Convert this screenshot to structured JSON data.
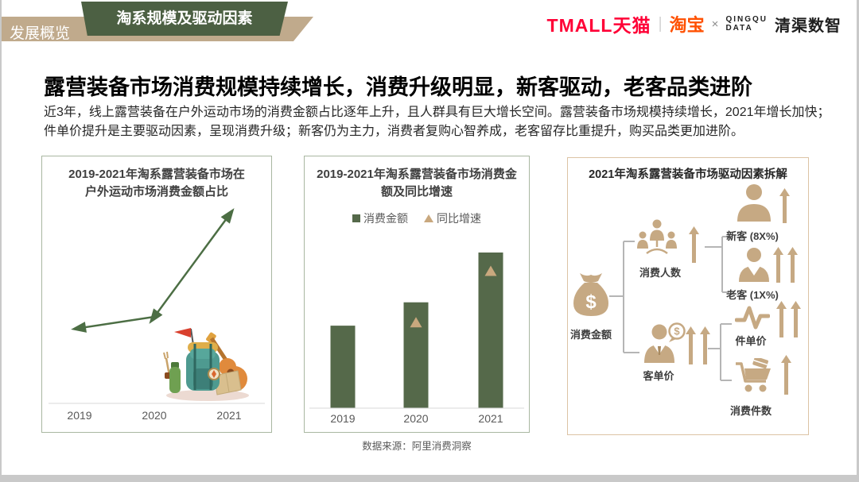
{
  "header": {
    "section_label": "发展概览",
    "page_tab": "淘系规模及驱动因素",
    "logos": {
      "tmall": "TMALL天猫",
      "separator": "|",
      "taobao": "淘宝",
      "cross": "×",
      "qingqu_en_line1": "QINGQU",
      "qingqu_en_line2": "DATA",
      "qingqu_cn": "清渠数智"
    }
  },
  "headline": "露营装备市场消费规模持续增长，消费升级明显，新客驱动，老客品类进阶",
  "summary_line1": "近3年，线上露营装备在户外运动市场的消费金额占比逐年上升，且人群具有巨大增长空间。露营装备市场规模持续增长，2021年增长加快；",
  "summary_line2": "件单价提升是主要驱动因素，呈现消费升级；新客仍为主力，消费者复购心智养成，老客留存比重提升，购买品类更加进阶。",
  "colors": {
    "brand_green": "#4c6043",
    "ribbon_tan": "#c0aa8c",
    "bar_green": "#55694a",
    "line_green": "#4c6e44",
    "marker_tan": "#c9a87e",
    "icon_tan": "#c6a983",
    "tmall_red": "#ff0036",
    "taobao_orange": "#ff5000"
  },
  "chart_data": [
    {
      "type": "line",
      "title": "2019-2021年淘系露营装备市场在户外运动市场消费金额占比",
      "title_lines": [
        "2019-2021年淘系露营装备市场在",
        "户外运动市场消费金额占比"
      ],
      "categories": [
        "2019",
        "2020",
        "2021"
      ],
      "series": [
        {
          "name": "消费金额占比",
          "values_relative": [
            0.4,
            0.46,
            1.0
          ]
        }
      ],
      "value_labels_shown": false,
      "y_axis_shown": false,
      "grid": false,
      "note": "无数值标注，按三角标记高度估算的相对占比（2021=1.0）"
    },
    {
      "type": "bar",
      "title": "2019-2021年淘系露营装备市场消费金额及同比增速",
      "title_lines": [
        "2019-2021年淘系露营装备市场消费金",
        "额及同比增速"
      ],
      "categories": [
        "2019",
        "2020",
        "2021"
      ],
      "series": [
        {
          "name": "消费金额",
          "type": "bar",
          "values_relative": [
            0.53,
            0.68,
            1.0
          ]
        },
        {
          "name": "同比增速",
          "type": "triangle-marker",
          "values_relative": [
            null,
            0.55,
            0.88
          ]
        }
      ],
      "legend_position": "top",
      "value_labels_shown": false,
      "y_axis_shown": false,
      "grid": false,
      "note": "无数值标注，按柱高/标记高度估算的相对值（2021消费金额=1.0）"
    }
  ],
  "driver_panel": {
    "title": "2021年淘系露营装备市场驱动因素拆解",
    "root": {
      "label": "消费金额",
      "icon": "money-bag-icon"
    },
    "level1": [
      {
        "label": "消费人数",
        "icon": "people-group-icon",
        "up_arrows": 1
      },
      {
        "label": "客单价",
        "icon": "person-dollar-icon",
        "up_arrows": 2
      }
    ],
    "level2": [
      {
        "label": "新客 (8X%)",
        "icon": "new-customer-icon",
        "up_arrows": 1,
        "parent": "消费人数"
      },
      {
        "label": "老客 (1X%)",
        "icon": "returning-customer-icon",
        "up_arrows": 2,
        "parent": "消费人数"
      },
      {
        "label": "件单价",
        "icon": "unit-price-pulse-icon",
        "up_arrows": 2,
        "parent": "客单价"
      },
      {
        "label": "消费件数",
        "icon": "cart-icon",
        "up_arrows": 1,
        "parent": "客单价"
      }
    ]
  },
  "footer": {
    "source": "数据来源：阿里消费洞察"
  }
}
